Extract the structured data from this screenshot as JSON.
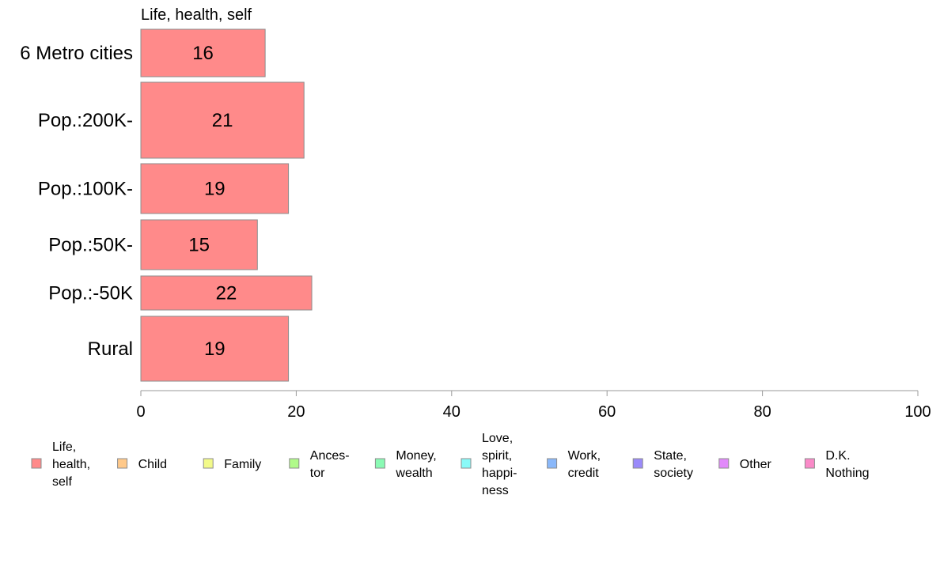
{
  "chart_data": {
    "type": "bar",
    "orientation": "horizontal",
    "stacked": true,
    "title": "",
    "xlabel": "",
    "ylabel": "",
    "xlim": [
      0,
      100
    ],
    "x_ticks": [
      "0",
      "20",
      "40",
      "60",
      "80",
      "100"
    ],
    "categories": [
      "6 Metro cities",
      "Pop.:200K-",
      "Pop.:100K-",
      "Pop.:50K-",
      "Pop.:-50K",
      "Rural"
    ],
    "series": [
      {
        "name": "Life, health, self",
        "color": "#ff8a8a",
        "values": [
          16,
          21,
          19,
          15,
          22,
          19
        ]
      }
    ],
    "visible_series_title": "Life, health, self",
    "legend_position": "bottom",
    "legend": [
      {
        "lines": [
          "Life,",
          "health,",
          "self"
        ],
        "color": "#ff8a8a"
      },
      {
        "lines": [
          "Child"
        ],
        "color": "#ffc98a"
      },
      {
        "lines": [
          "Family"
        ],
        "color": "#f2fa8a"
      },
      {
        "lines": [
          "Ances-",
          "tor"
        ],
        "color": "#b0fa8a"
      },
      {
        "lines": [
          "Money,",
          "wealth"
        ],
        "color": "#8afab4"
      },
      {
        "lines": [
          "Love,",
          "spirit,",
          "happi-",
          "ness"
        ],
        "color": "#8afaf8"
      },
      {
        "lines": [
          "Work,",
          "credit"
        ],
        "color": "#8ab8fa"
      },
      {
        "lines": [
          "State,",
          "society"
        ],
        "color": "#9a8afa"
      },
      {
        "lines": [
          "Other"
        ],
        "color": "#e18afa"
      },
      {
        "lines": [
          "D.K.",
          "Nothing"
        ],
        "color": "#fa8ac8"
      }
    ]
  }
}
